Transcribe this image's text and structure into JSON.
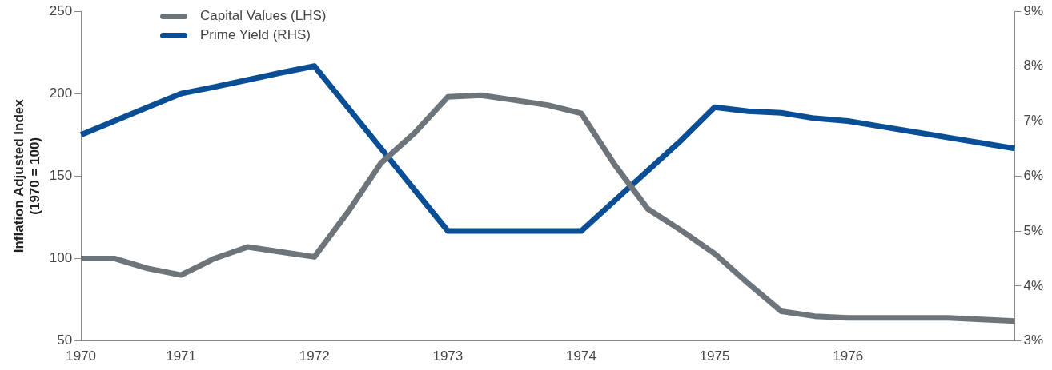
{
  "chart_data": {
    "type": "line",
    "ylabel": "Inflation Adjusted Index\n(1970 = 100)",
    "categories": [
      "1970",
      null,
      null,
      "1971",
      null,
      null,
      null,
      "1972",
      null,
      null,
      null,
      "1973",
      null,
      null,
      null,
      "1974",
      null,
      null,
      null,
      "1975",
      null,
      null,
      null,
      "1976",
      null,
      null,
      null,
      null,
      null
    ],
    "series": [
      {
        "name": "Capital Values (LHS)",
        "color": "#6d757b",
        "values": [
          100,
          100,
          94,
          90,
          100,
          107,
          104,
          101,
          128,
          158,
          176,
          198,
          199,
          196,
          193,
          188,
          157,
          130,
          117,
          103,
          85,
          68,
          65,
          64,
          64,
          64,
          64,
          63,
          62
        ]
      },
      {
        "name": "Prime Yield (RHS)",
        "color": "#0a4f96",
        "axis": "y2",
        "values": [
          6.75,
          7.0,
          7.25,
          7.5,
          7.62,
          7.75,
          7.88,
          8.0,
          7.25,
          6.5,
          5.75,
          5.0,
          5.0,
          5.0,
          5.0,
          5.0,
          5.55,
          6.1,
          6.65,
          7.25,
          7.18,
          7.15,
          7.05,
          7.0,
          6.9,
          6.8,
          6.7,
          6.6,
          6.5
        ]
      }
    ],
    "ylim": [
      50,
      250
    ],
    "yticks": [
      50,
      100,
      150,
      200,
      250
    ],
    "y2lim": [
      3,
      9
    ],
    "y2ticks": [
      {
        "value": 3,
        "label": "3%"
      },
      {
        "value": 4,
        "label": "4%"
      },
      {
        "value": 5,
        "label": "5%"
      },
      {
        "value": 6,
        "label": "6%"
      },
      {
        "value": 7,
        "label": "7%"
      },
      {
        "value": 8,
        "label": "8%"
      },
      {
        "value": 9,
        "label": "9%"
      }
    ],
    "grid": false,
    "legend": "top left",
    "marker": "none",
    "line_style": "solid"
  }
}
